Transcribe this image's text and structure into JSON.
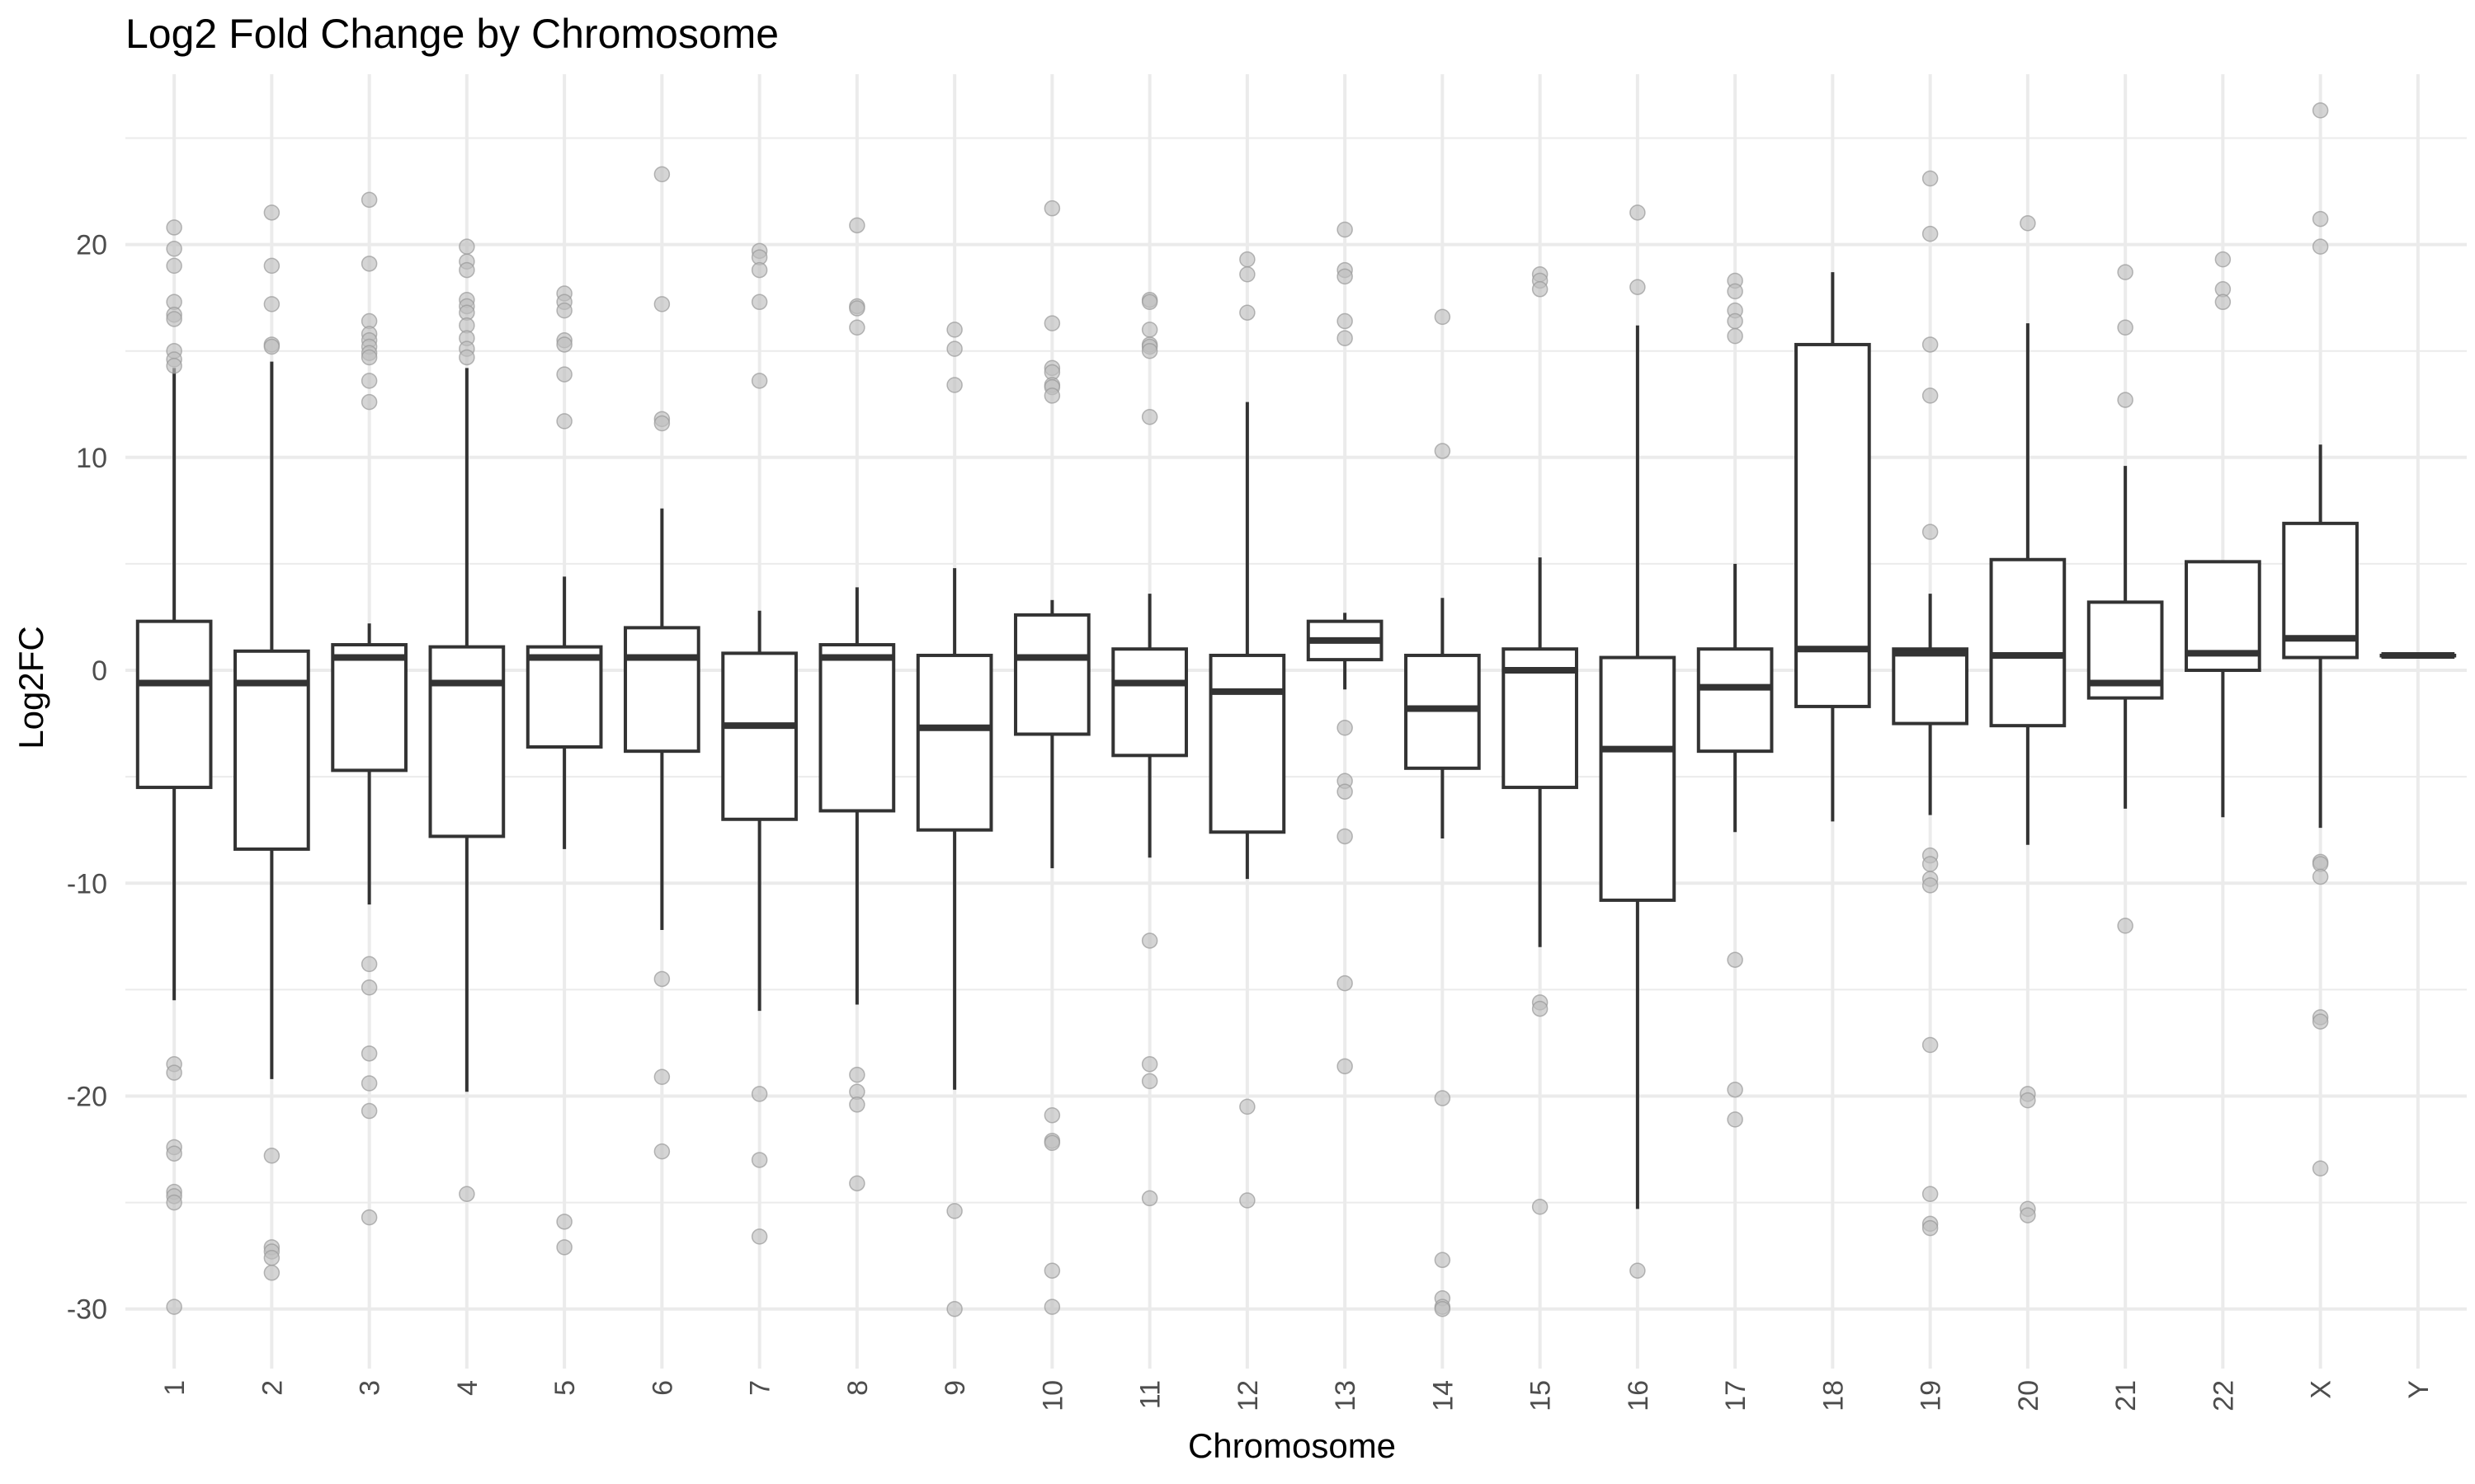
{
  "chart_data": {
    "type": "box",
    "title": "Log2 Fold Change by Chromosome",
    "xlabel": "Chromosome",
    "ylabel": "Log2FC",
    "ylim": [
      -32.8,
      28
    ],
    "y_ticks": [
      20,
      10,
      0,
      -10,
      -20,
      -30
    ],
    "y_tick_labels": [
      "20",
      "10",
      "0",
      "-10",
      "-20",
      "-30"
    ],
    "grid": true,
    "colors": {
      "box": "#333333",
      "outlier": "#bfbfbf",
      "outlier_stroke": "#999999",
      "grid": "#ebebeb"
    },
    "categories": [
      "1",
      "2",
      "3",
      "4",
      "5",
      "6",
      "7",
      "8",
      "9",
      "10",
      "11",
      "12",
      "13",
      "14",
      "15",
      "16",
      "17",
      "18",
      "19",
      "20",
      "21",
      "22",
      "X",
      "Y"
    ],
    "boxes": [
      {
        "q1": -5.5,
        "median": -0.6,
        "q3": 2.3,
        "whisker_low": -15.5,
        "whisker_high": 14.2,
        "outliers": [
          20.8,
          19.8,
          19.0,
          17.3,
          16.7,
          16.5,
          15.0,
          14.6,
          14.3,
          -18.5,
          -18.9,
          -22.4,
          -22.7,
          -24.5,
          -24.7,
          -25.0,
          -29.9
        ]
      },
      {
        "q1": -8.4,
        "median": -0.6,
        "q3": 0.9,
        "whisker_low": -19.2,
        "whisker_high": 14.5,
        "outliers": [
          21.5,
          19.0,
          17.2,
          15.3,
          15.2,
          -22.8,
          -27.1,
          -27.3,
          -27.6,
          -28.3
        ]
      },
      {
        "q1": -4.7,
        "median": 0.6,
        "q3": 1.2,
        "whisker_low": -11.0,
        "whisker_high": 2.2,
        "outliers": [
          22.1,
          19.1,
          16.4,
          15.8,
          15.5,
          15.2,
          14.9,
          14.7,
          13.6,
          12.6,
          -13.8,
          -14.9,
          -18.0,
          -19.4,
          -20.7,
          -25.7
        ]
      },
      {
        "q1": -7.8,
        "median": -0.6,
        "q3": 1.1,
        "whisker_low": -19.8,
        "whisker_high": 14.2,
        "outliers": [
          19.9,
          19.2,
          18.8,
          17.4,
          17.1,
          16.8,
          16.2,
          15.6,
          15.1,
          14.7,
          -24.6
        ]
      },
      {
        "q1": -3.6,
        "median": 0.6,
        "q3": 1.1,
        "whisker_low": -8.4,
        "whisker_high": 4.4,
        "outliers": [
          17.7,
          17.3,
          16.9,
          15.5,
          15.3,
          13.9,
          11.7,
          -25.9,
          -27.1
        ]
      },
      {
        "q1": -3.8,
        "median": 0.6,
        "q3": 2.0,
        "whisker_low": -12.2,
        "whisker_high": 7.6,
        "outliers": [
          23.3,
          17.2,
          11.8,
          11.6,
          -14.5,
          -19.1,
          -22.6
        ]
      },
      {
        "q1": -7.0,
        "median": -2.6,
        "q3": 0.8,
        "whisker_low": -16.0,
        "whisker_high": 2.8,
        "outliers": [
          19.7,
          19.4,
          18.8,
          17.3,
          13.6,
          -19.9,
          -23.0,
          -26.6
        ]
      },
      {
        "q1": -6.6,
        "median": 0.6,
        "q3": 1.2,
        "whisker_low": -15.7,
        "whisker_high": 3.9,
        "outliers": [
          20.9,
          17.1,
          17.0,
          16.1,
          -19.0,
          -19.8,
          -20.4,
          -24.1
        ]
      },
      {
        "q1": -7.5,
        "median": -2.7,
        "q3": 0.7,
        "whisker_low": -19.7,
        "whisker_high": 4.8,
        "outliers": [
          16.0,
          15.1,
          13.4,
          -25.4,
          -30.0
        ]
      },
      {
        "q1": -3.0,
        "median": 0.6,
        "q3": 2.6,
        "whisker_low": -9.3,
        "whisker_high": 3.3,
        "outliers": [
          21.7,
          16.3,
          14.2,
          14.0,
          13.4,
          13.3,
          12.9,
          -20.9,
          -22.1,
          -22.2,
          -28.2,
          -29.9
        ]
      },
      {
        "q1": -4.0,
        "median": -0.6,
        "q3": 1.0,
        "whisker_low": -8.8,
        "whisker_high": 3.6,
        "outliers": [
          17.4,
          17.3,
          16.0,
          15.3,
          15.2,
          15.0,
          11.9,
          -12.7,
          -18.5,
          -19.3,
          -24.8
        ]
      },
      {
        "q1": -7.6,
        "median": -1.0,
        "q3": 0.7,
        "whisker_low": -9.8,
        "whisker_high": 12.6,
        "outliers": [
          19.3,
          18.6,
          16.8,
          -20.5,
          -24.9
        ]
      },
      {
        "q1": 0.5,
        "median": 1.4,
        "q3": 2.3,
        "whisker_low": -0.9,
        "whisker_high": 2.7,
        "outliers": [
          20.7,
          18.8,
          18.5,
          16.4,
          15.6,
          -2.7,
          -5.2,
          -5.7,
          -7.8,
          -14.7,
          -18.6
        ]
      },
      {
        "q1": -4.6,
        "median": -1.8,
        "q3": 0.7,
        "whisker_low": -7.9,
        "whisker_high": 3.4,
        "outliers": [
          16.6,
          10.3,
          -20.1,
          -27.7,
          -29.5,
          -29.9,
          -30.0
        ]
      },
      {
        "q1": -5.5,
        "median": 0.0,
        "q3": 1.0,
        "whisker_low": -13.0,
        "whisker_high": 5.3,
        "outliers": [
          18.6,
          18.3,
          17.9,
          -15.6,
          -15.9,
          -25.2
        ]
      },
      {
        "q1": -10.8,
        "median": -3.7,
        "q3": 0.6,
        "whisker_low": -25.3,
        "whisker_high": 16.2,
        "outliers": [
          21.5,
          18.0,
          -28.2
        ]
      },
      {
        "q1": -3.8,
        "median": -0.8,
        "q3": 1.0,
        "whisker_low": -7.6,
        "whisker_high": 5.0,
        "outliers": [
          18.3,
          17.8,
          16.9,
          16.4,
          15.7,
          -13.6,
          -19.7,
          -21.1
        ]
      },
      {
        "q1": -1.7,
        "median": 1.0,
        "q3": 15.3,
        "whisker_low": -7.1,
        "whisker_high": 18.7,
        "outliers": []
      },
      {
        "q1": -2.5,
        "median": 0.8,
        "q3": 1.0,
        "whisker_low": -6.8,
        "whisker_high": 3.6,
        "outliers": [
          23.1,
          20.5,
          15.3,
          12.9,
          6.5,
          -8.7,
          -9.1,
          -9.8,
          -10.1,
          -17.6,
          -24.6,
          -26.0,
          -26.2
        ]
      },
      {
        "q1": -2.6,
        "median": 0.7,
        "q3": 5.2,
        "whisker_low": -8.2,
        "whisker_high": 16.3,
        "outliers": [
          21.0,
          -19.9,
          -20.2,
          -25.3,
          -25.6
        ]
      },
      {
        "q1": -1.3,
        "median": -0.6,
        "q3": 3.2,
        "whisker_low": -6.5,
        "whisker_high": 9.6,
        "outliers": [
          18.7,
          16.1,
          12.7,
          -12.0
        ]
      },
      {
        "q1": 0.0,
        "median": 0.8,
        "q3": 5.1,
        "whisker_low": -6.9,
        "whisker_high": 5.1,
        "outliers": [
          19.3,
          17.9,
          17.3
        ]
      },
      {
        "q1": 0.6,
        "median": 1.5,
        "q3": 6.9,
        "whisker_low": -7.4,
        "whisker_high": 10.6,
        "outliers": [
          26.3,
          21.2,
          19.9,
          -9.0,
          -9.1,
          -9.7,
          -16.3,
          -16.5,
          -23.4
        ]
      },
      {
        "q1": 0.7,
        "median": 0.7,
        "q3": 0.7,
        "whisker_low": 0.7,
        "whisker_high": 0.7,
        "outliers": []
      }
    ]
  }
}
